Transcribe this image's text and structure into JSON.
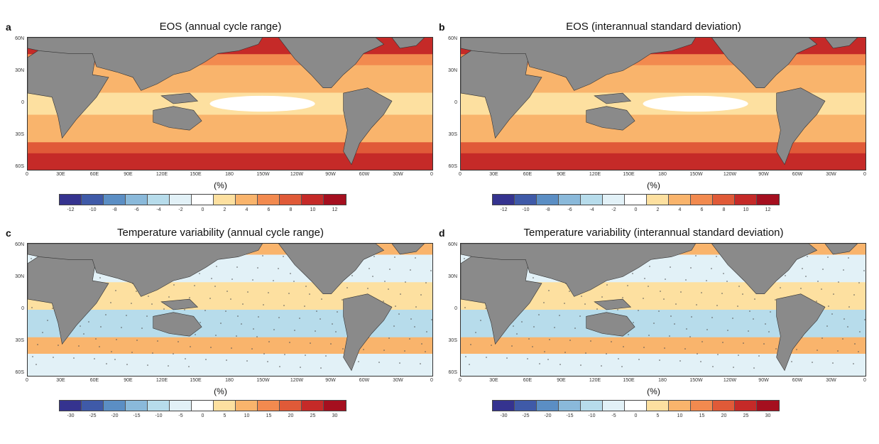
{
  "figure": {
    "panels": [
      {
        "letter": "a",
        "title": "EOS (annual cycle range)",
        "style": "eos",
        "unit": "(%)",
        "colorbar_labels": [
          "-12",
          "-10",
          "-8",
          "-6",
          "-4",
          "-2",
          "0",
          "2",
          "4",
          "6",
          "8",
          "10",
          "12"
        ]
      },
      {
        "letter": "b",
        "title": "EOS (interannual standard deviation)",
        "style": "eos",
        "unit": "(%)",
        "colorbar_labels": [
          "-12",
          "-10",
          "-8",
          "-6",
          "-4",
          "-2",
          "0",
          "2",
          "4",
          "6",
          "8",
          "10",
          "12"
        ]
      },
      {
        "letter": "c",
        "title": "Temperature variability (annual cycle range)",
        "style": "temp",
        "unit": "(%)",
        "colorbar_labels": [
          "-30",
          "-25",
          "-20",
          "-15",
          "-10",
          "-5",
          "0",
          "5",
          "10",
          "15",
          "20",
          "25",
          "30"
        ]
      },
      {
        "letter": "d",
        "title": "Temperature variability (interannual standard deviation)",
        "style": "temp",
        "unit": "(%)",
        "colorbar_labels": [
          "-30",
          "-25",
          "-20",
          "-15",
          "-10",
          "-5",
          "0",
          "5",
          "10",
          "15",
          "20",
          "25",
          "30"
        ]
      }
    ],
    "lat_ticks": [
      "60N",
      "30N",
      "0",
      "30S",
      "60S"
    ],
    "lon_ticks": [
      "0",
      "30E",
      "60E",
      "90E",
      "120E",
      "150E",
      "180",
      "150W",
      "120W",
      "90W",
      "60W",
      "30W",
      "0"
    ],
    "colors": {
      "land": "#8a8a8a",
      "colormap": [
        "#35338f",
        "#3f5aa8",
        "#5b8ec4",
        "#8ab9da",
        "#b7dceb",
        "#e2f1f7",
        "#ffffff",
        "#fde0a0",
        "#f9b46c",
        "#f28a4f",
        "#e05a38",
        "#c52a28",
        "#a50f1f"
      ]
    }
  }
}
